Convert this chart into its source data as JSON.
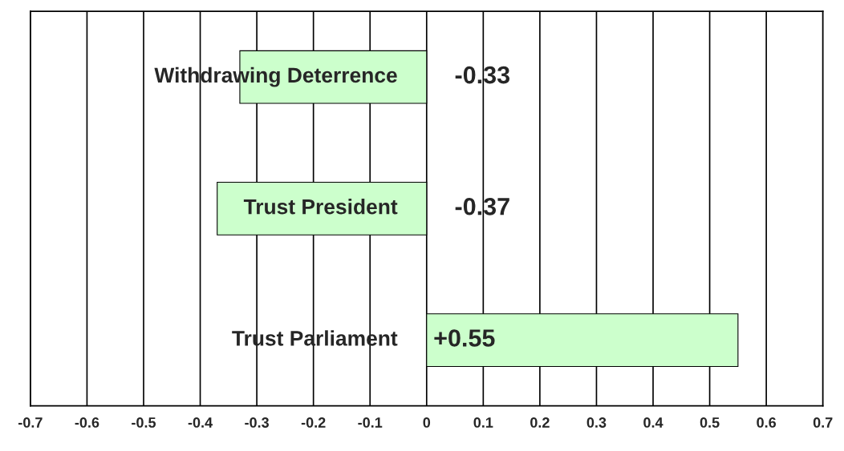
{
  "chart_data": {
    "type": "bar",
    "orientation": "horizontal",
    "categories": [
      "Withdrawing Deterrence",
      "Trust President",
      "Trust Parliament"
    ],
    "values": [
      -0.33,
      -0.37,
      0.55
    ],
    "color": "#ccffcc",
    "value_labels": [
      "-0.33",
      "-0.37",
      "+0.55"
    ],
    "xlim": [
      -0.7,
      0.7
    ],
    "xticks": [
      -0.7,
      -0.6,
      -0.5,
      -0.4,
      -0.3,
      -0.2,
      -0.1,
      0,
      0.1,
      0.2,
      0.3,
      0.4,
      0.5,
      0.6,
      0.7
    ],
    "grid": "x"
  }
}
